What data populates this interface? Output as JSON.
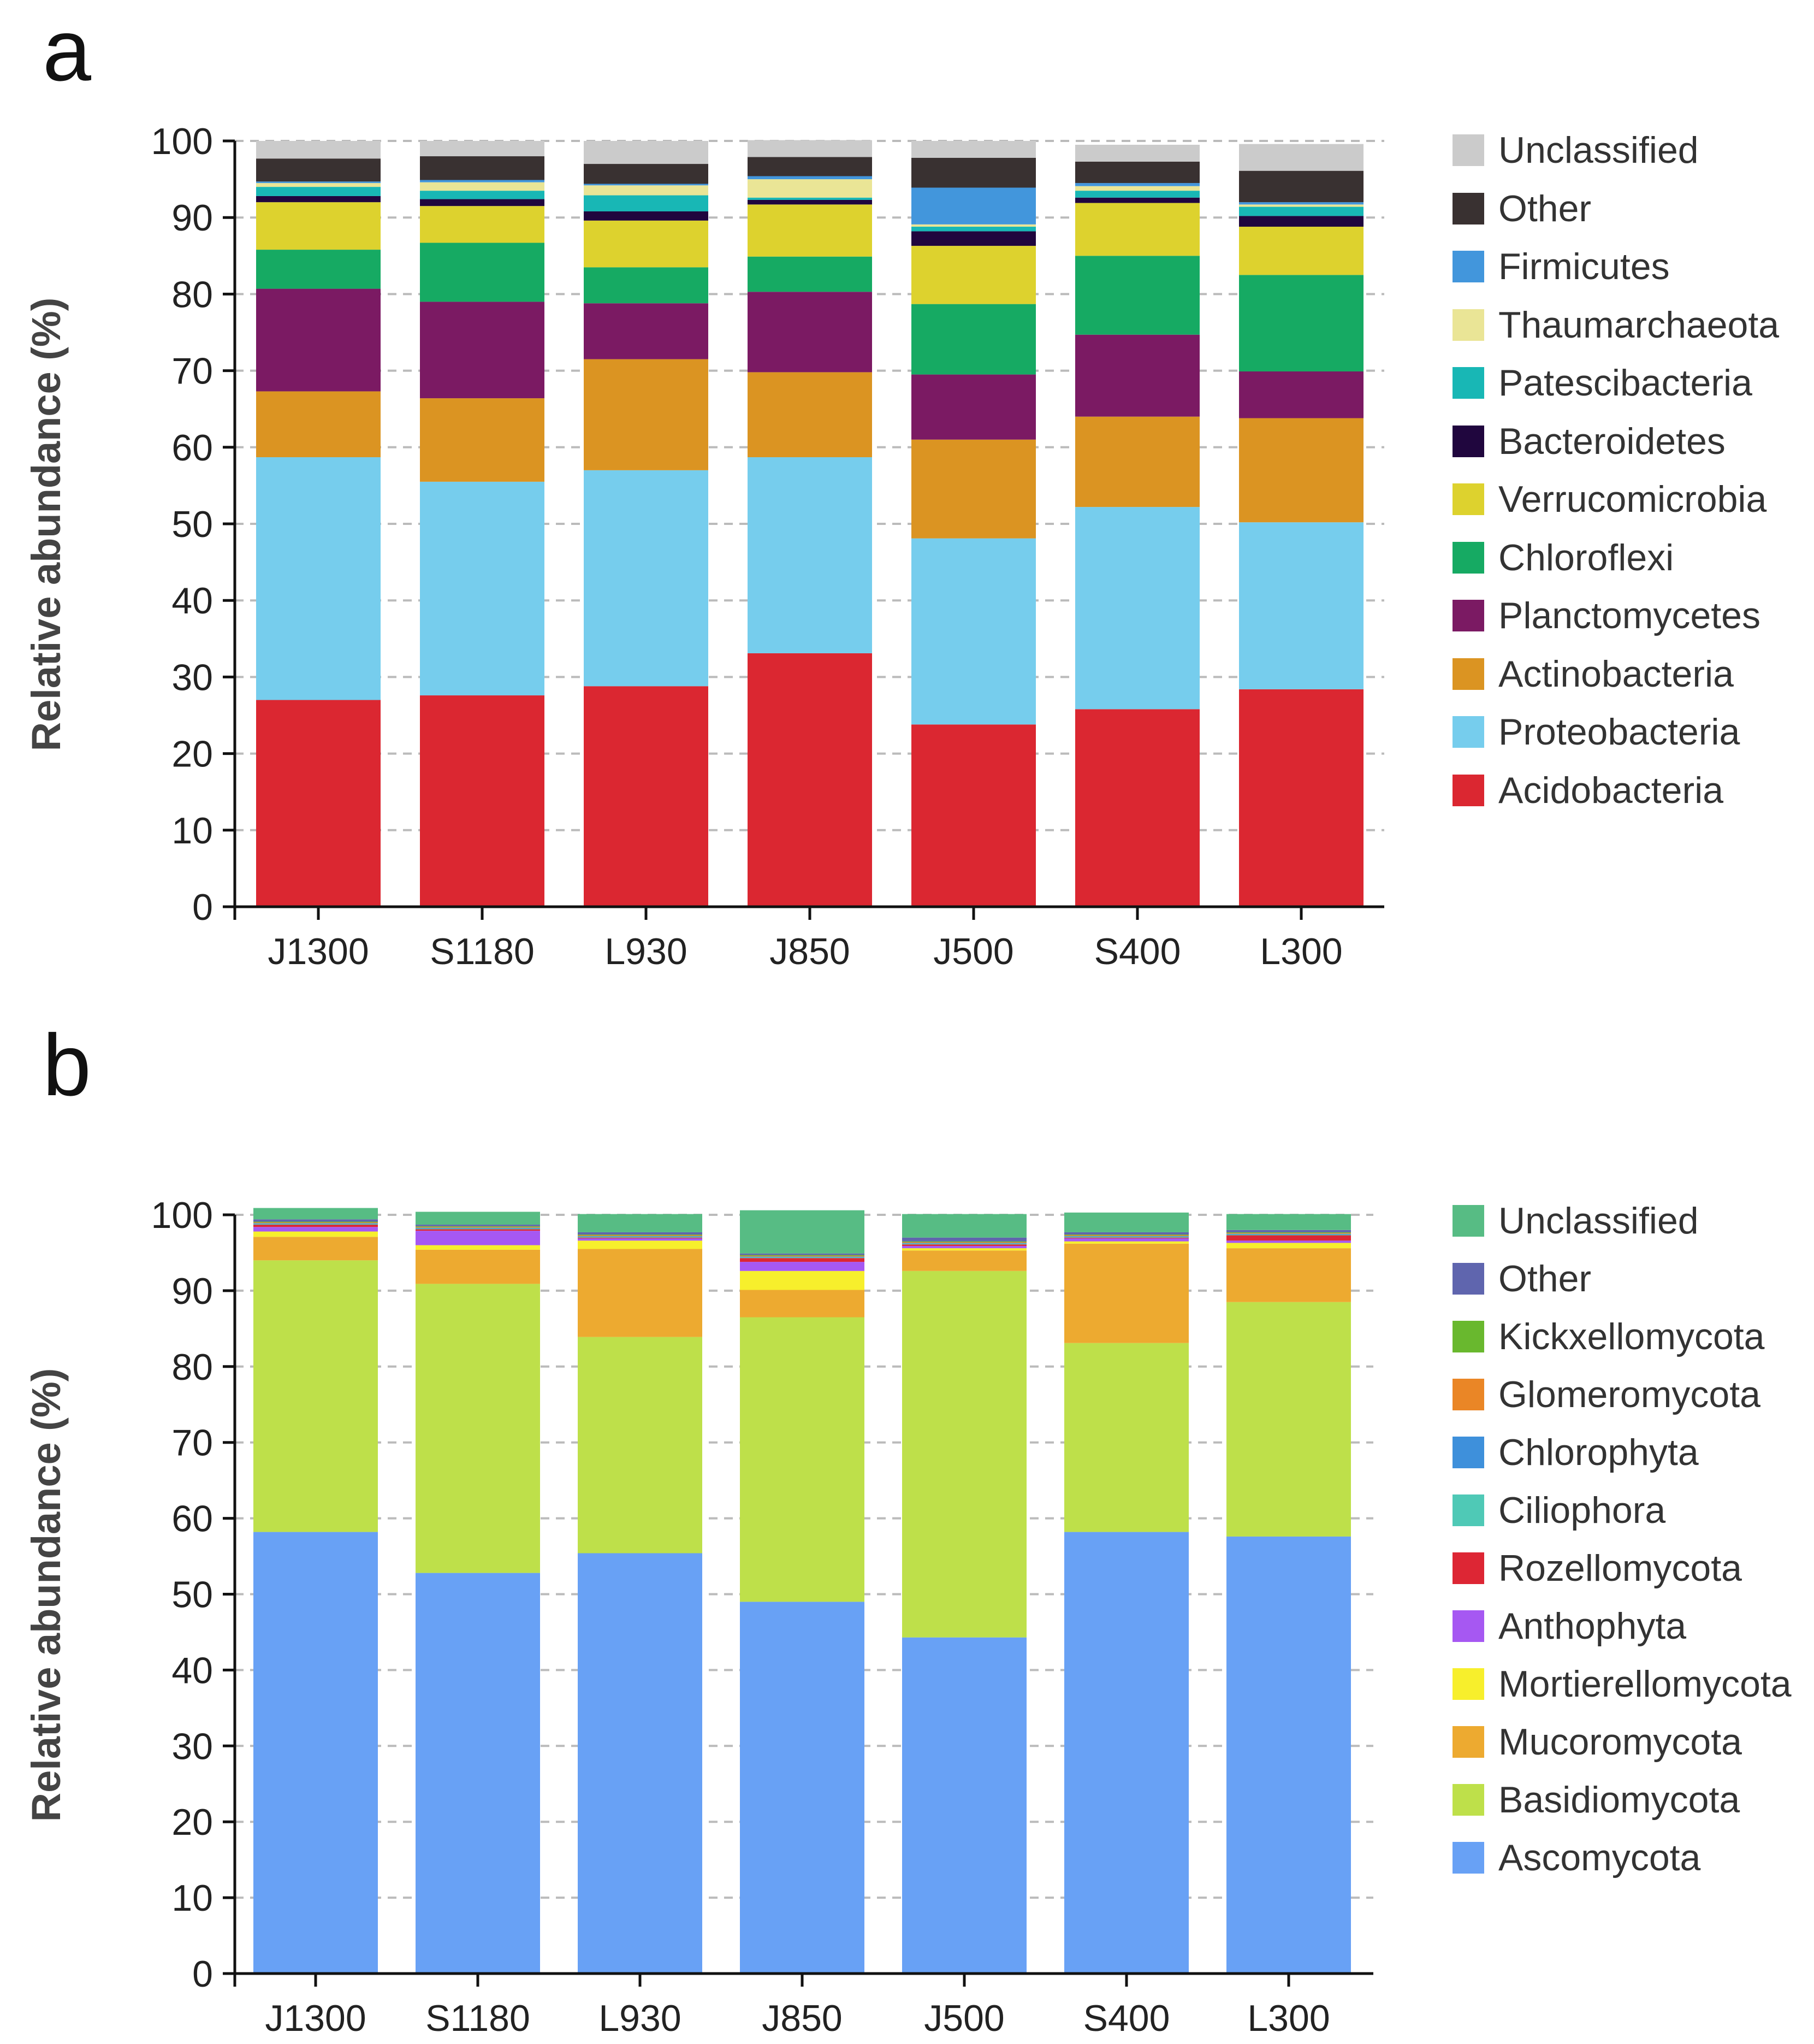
{
  "chart_data": [
    {
      "panel": "a",
      "type": "bar",
      "stacked": true,
      "ylabel": "Relative abundance (%)",
      "xlabel": "",
      "ylim": [
        0,
        100
      ],
      "yticks": [
        0,
        10,
        20,
        30,
        40,
        50,
        60,
        70,
        80,
        90,
        100
      ],
      "grid": "horizontal-dashed",
      "legend_position": "right",
      "categories": [
        "J1300",
        "S1180",
        "L930",
        "J850",
        "J500",
        "S400",
        "L300"
      ],
      "series": [
        {
          "name": "Acidobacteria",
          "color": "#DB2731",
          "values": [
            27.0,
            27.6,
            28.8,
            33.1,
            23.8,
            25.8,
            28.4
          ]
        },
        {
          "name": "Proteobacteria",
          "color": "#76CDED",
          "values": [
            31.7,
            27.9,
            28.2,
            25.6,
            24.3,
            26.4,
            21.8
          ]
        },
        {
          "name": "Actinobacteria",
          "color": "#DB9422",
          "values": [
            8.6,
            10.9,
            14.5,
            11.1,
            12.9,
            11.8,
            13.6
          ]
        },
        {
          "name": "Planctomycetes",
          "color": "#7B1A63",
          "values": [
            13.4,
            12.6,
            7.3,
            10.5,
            8.5,
            10.7,
            6.1
          ]
        },
        {
          "name": "Chloroflexi",
          "color": "#16AA63",
          "values": [
            5.1,
            7.7,
            4.7,
            4.6,
            9.2,
            10.3,
            12.6
          ]
        },
        {
          "name": "Verrucomicrobia",
          "color": "#DDD22E",
          "values": [
            6.2,
            4.8,
            6.1,
            6.8,
            7.6,
            6.9,
            6.3
          ]
        },
        {
          "name": "Bacteroidetes",
          "color": "#20063E",
          "values": [
            0.8,
            0.9,
            1.2,
            0.6,
            1.9,
            0.7,
            1.4
          ]
        },
        {
          "name": "Patescibacteria",
          "color": "#18B7B5",
          "values": [
            1.2,
            1.1,
            2.1,
            0.3,
            0.6,
            0.9,
            1.2
          ]
        },
        {
          "name": "Thaumarchaeota",
          "color": "#EAE596",
          "values": [
            0.5,
            1.1,
            1.3,
            2.4,
            0.3,
            0.6,
            0.3
          ]
        },
        {
          "name": "Firmicutes",
          "color": "#4296DC",
          "values": [
            0.2,
            0.3,
            0.2,
            0.4,
            4.8,
            0.4,
            0.3
          ]
        },
        {
          "name": "Other",
          "color": "#393131",
          "values": [
            3.0,
            3.1,
            2.6,
            2.5,
            3.9,
            2.8,
            4.1
          ]
        },
        {
          "name": "Unclassified",
          "color": "#CBCBCB",
          "values": [
            2.3,
            2.0,
            3.0,
            2.2,
            2.2,
            2.2,
            3.5
          ]
        }
      ]
    },
    {
      "panel": "b",
      "type": "bar",
      "stacked": true,
      "ylabel": "Relative abundance (%)",
      "xlabel": "",
      "ylim": [
        0,
        100
      ],
      "yticks": [
        0,
        10,
        20,
        30,
        40,
        50,
        60,
        70,
        80,
        90,
        100
      ],
      "grid": "horizontal-dashed",
      "legend_position": "right",
      "categories": [
        "J1300",
        "S1180",
        "L930",
        "J850",
        "J500",
        "S400",
        "L300"
      ],
      "series": [
        {
          "name": "Ascomycota",
          "color": "#68A1F5",
          "values": [
            58.2,
            52.8,
            55.4,
            49.0,
            44.3,
            58.2,
            57.6
          ]
        },
        {
          "name": "Basidiomycota",
          "color": "#BEE04A",
          "values": [
            35.8,
            38.1,
            28.5,
            37.5,
            48.3,
            24.9,
            30.9
          ]
        },
        {
          "name": "Mucoromycota",
          "color": "#EDAA30",
          "values": [
            3.1,
            4.5,
            11.6,
            3.6,
            2.7,
            13.1,
            7.1
          ]
        },
        {
          "name": "Mortierellomycota",
          "color": "#F7EF2C",
          "values": [
            0.7,
            0.6,
            1.1,
            2.5,
            0.3,
            0.3,
            0.7
          ]
        },
        {
          "name": "Anthophyta",
          "color": "#A658F2",
          "values": [
            0.6,
            1.9,
            0.3,
            1.2,
            0.3,
            0.4,
            0.3
          ]
        },
        {
          "name": "Rozellomycota",
          "color": "#DD2634",
          "values": [
            0.3,
            0.2,
            0.1,
            0.5,
            0.2,
            0.1,
            0.7
          ]
        },
        {
          "name": "Ciliophora",
          "color": "#4FC9B6",
          "values": [
            0.1,
            0.1,
            0.1,
            0.1,
            0.1,
            0.1,
            0.1
          ]
        },
        {
          "name": "Chlorophyta",
          "color": "#3E90DB",
          "values": [
            0.1,
            0.1,
            0.1,
            0.1,
            0.1,
            0.1,
            0.1
          ]
        },
        {
          "name": "Glomeromycota",
          "color": "#EA8626",
          "values": [
            0.1,
            0.1,
            0.1,
            0.1,
            0.1,
            0.1,
            0.1
          ]
        },
        {
          "name": "Kickxellomycota",
          "color": "#69B82E",
          "values": [
            0.1,
            0.1,
            0.1,
            0.1,
            0.1,
            0.1,
            0.1
          ]
        },
        {
          "name": "Other",
          "color": "#5F65AE",
          "values": [
            0.3,
            0.2,
            0.3,
            0.2,
            0.5,
            0.3,
            0.3
          ]
        },
        {
          "name": "Unclassified",
          "color": "#57BC84",
          "values": [
            1.5,
            1.7,
            2.4,
            5.7,
            3.1,
            2.6,
            2.1
          ]
        }
      ]
    }
  ]
}
